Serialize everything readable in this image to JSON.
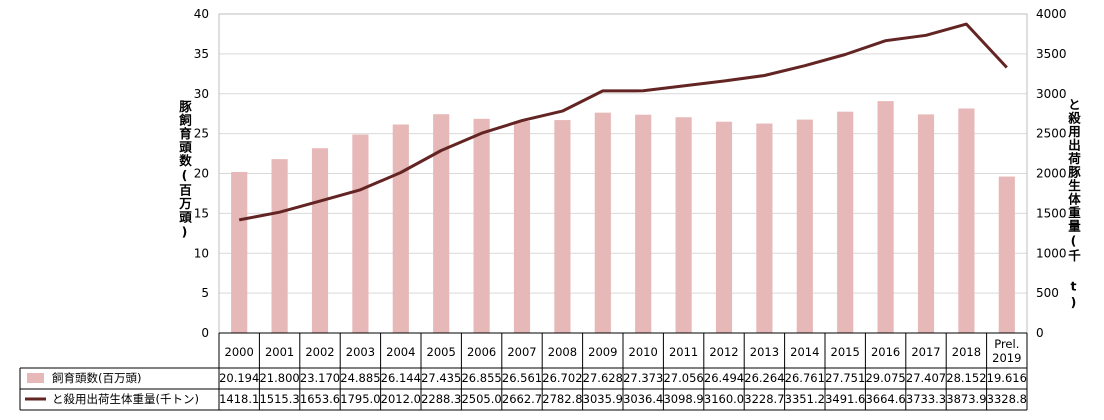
{
  "chart_data": {
    "type": "bar+line",
    "categories": [
      "2000",
      "2001",
      "2002",
      "2003",
      "2004",
      "2005",
      "2006",
      "2007",
      "2008",
      "2009",
      "2010",
      "2011",
      "2012",
      "2013",
      "2014",
      "2015",
      "2016",
      "2017",
      "2018",
      "Prel.\n2019"
    ],
    "series": [
      {
        "name": "飼育頭数(百万頭)",
        "type": "bar",
        "axis": "left",
        "values": [
          20.194,
          21.8,
          23.17,
          24.885,
          26.144,
          27.435,
          26.855,
          26.561,
          26.702,
          27.628,
          27.373,
          27.056,
          26.494,
          26.264,
          26.761,
          27.751,
          29.075,
          27.407,
          28.152,
          19.616
        ],
        "labels": [
          "20.194",
          "21.800",
          "23.170",
          "24.885",
          "26.144",
          "27.435",
          "26.855",
          "26.561",
          "26.702",
          "27.628",
          "27.373",
          "27.056",
          "26.494",
          "26.264",
          "26.761",
          "27.751",
          "29.075",
          "27.407",
          "28.152",
          "19.616"
        ]
      },
      {
        "name": "と殺用出荷生体重量(千トン)",
        "type": "line",
        "axis": "right",
        "values": [
          1418.1,
          1515.3,
          1653.6,
          1795.0,
          2012.0,
          2288.3,
          2505.0,
          2662.7,
          2782.8,
          3035.9,
          3036.4,
          3098.9,
          3160.0,
          3228.7,
          3351.2,
          3491.6,
          3664.6,
          3733.3,
          3873.9,
          3328.8
        ],
        "labels": [
          "1418.1",
          "1515.3",
          "1653.6",
          "1795.0",
          "2012.0",
          "2288.3",
          "2505.0",
          "2662.7",
          "2782.8",
          "3035.9",
          "3036.4",
          "3098.9",
          "3160.0",
          "3228.7",
          "3351.2",
          "3491.6",
          "3664.6",
          "3733.3",
          "3873.9",
          "3328.8"
        ]
      }
    ],
    "y_left": {
      "label": "豚飼育頭数(百万頭)",
      "ylim": [
        0,
        40
      ],
      "ticks": [
        "0",
        "5",
        "10",
        "15",
        "20",
        "25",
        "30",
        "35",
        "40"
      ]
    },
    "y_right": {
      "label": "と殺用出荷豚生体重量(千 t)",
      "ylim": [
        0,
        4000
      ],
      "ticks": [
        "0",
        "500",
        "1000",
        "1500",
        "2000",
        "2500",
        "3000",
        "3500",
        "4000"
      ]
    },
    "grid": true,
    "legend": "data-table-bottom"
  },
  "colors": {
    "bar": "#e6b8b7",
    "line": "#632523",
    "grid": "#d9d9d9",
    "border": "#000000"
  }
}
